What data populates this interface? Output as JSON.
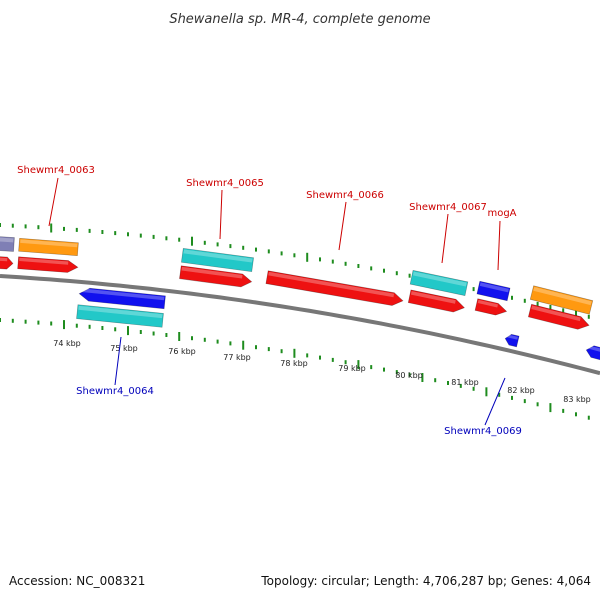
{
  "title": "Shewanella sp. MR-4, complete genome",
  "footer": {
    "accession": "Accession: NC_008321",
    "topology": "Topology: circular; Length: 4,706,287 bp; Genes: 4,064"
  },
  "colors": {
    "backbone": "#777777",
    "tick": "#1e8c1e",
    "forward_label": "#cc0000",
    "reverse_label": "#0000bb",
    "cds_red": "#ee1111",
    "cds_blue": "#1111ee",
    "gene_cyan": "#22c8c8",
    "gene_orange": "#ff9910",
    "gene_purple": "#7f7fb5"
  },
  "scale": {
    "tick_labels": [
      "74 kbp",
      "75 kbp",
      "76 kbp",
      "77 kbp",
      "78 kbp",
      "79 kbp",
      "80 kbp",
      "81 kbp",
      "82 kbp",
      "83 kbp"
    ]
  },
  "gene_labels": [
    {
      "name": "Shewmr4_0063",
      "strand": "forward"
    },
    {
      "name": "Shewmr4_0065",
      "strand": "forward"
    },
    {
      "name": "Shewmr4_0066",
      "strand": "forward"
    },
    {
      "name": "Shewmr4_0067",
      "strand": "forward"
    },
    {
      "name": "mogA",
      "strand": "forward"
    },
    {
      "name": "Shewmr4_0064",
      "strand": "reverse"
    },
    {
      "name": "Shewmr4_0069",
      "strand": "reverse"
    }
  ]
}
